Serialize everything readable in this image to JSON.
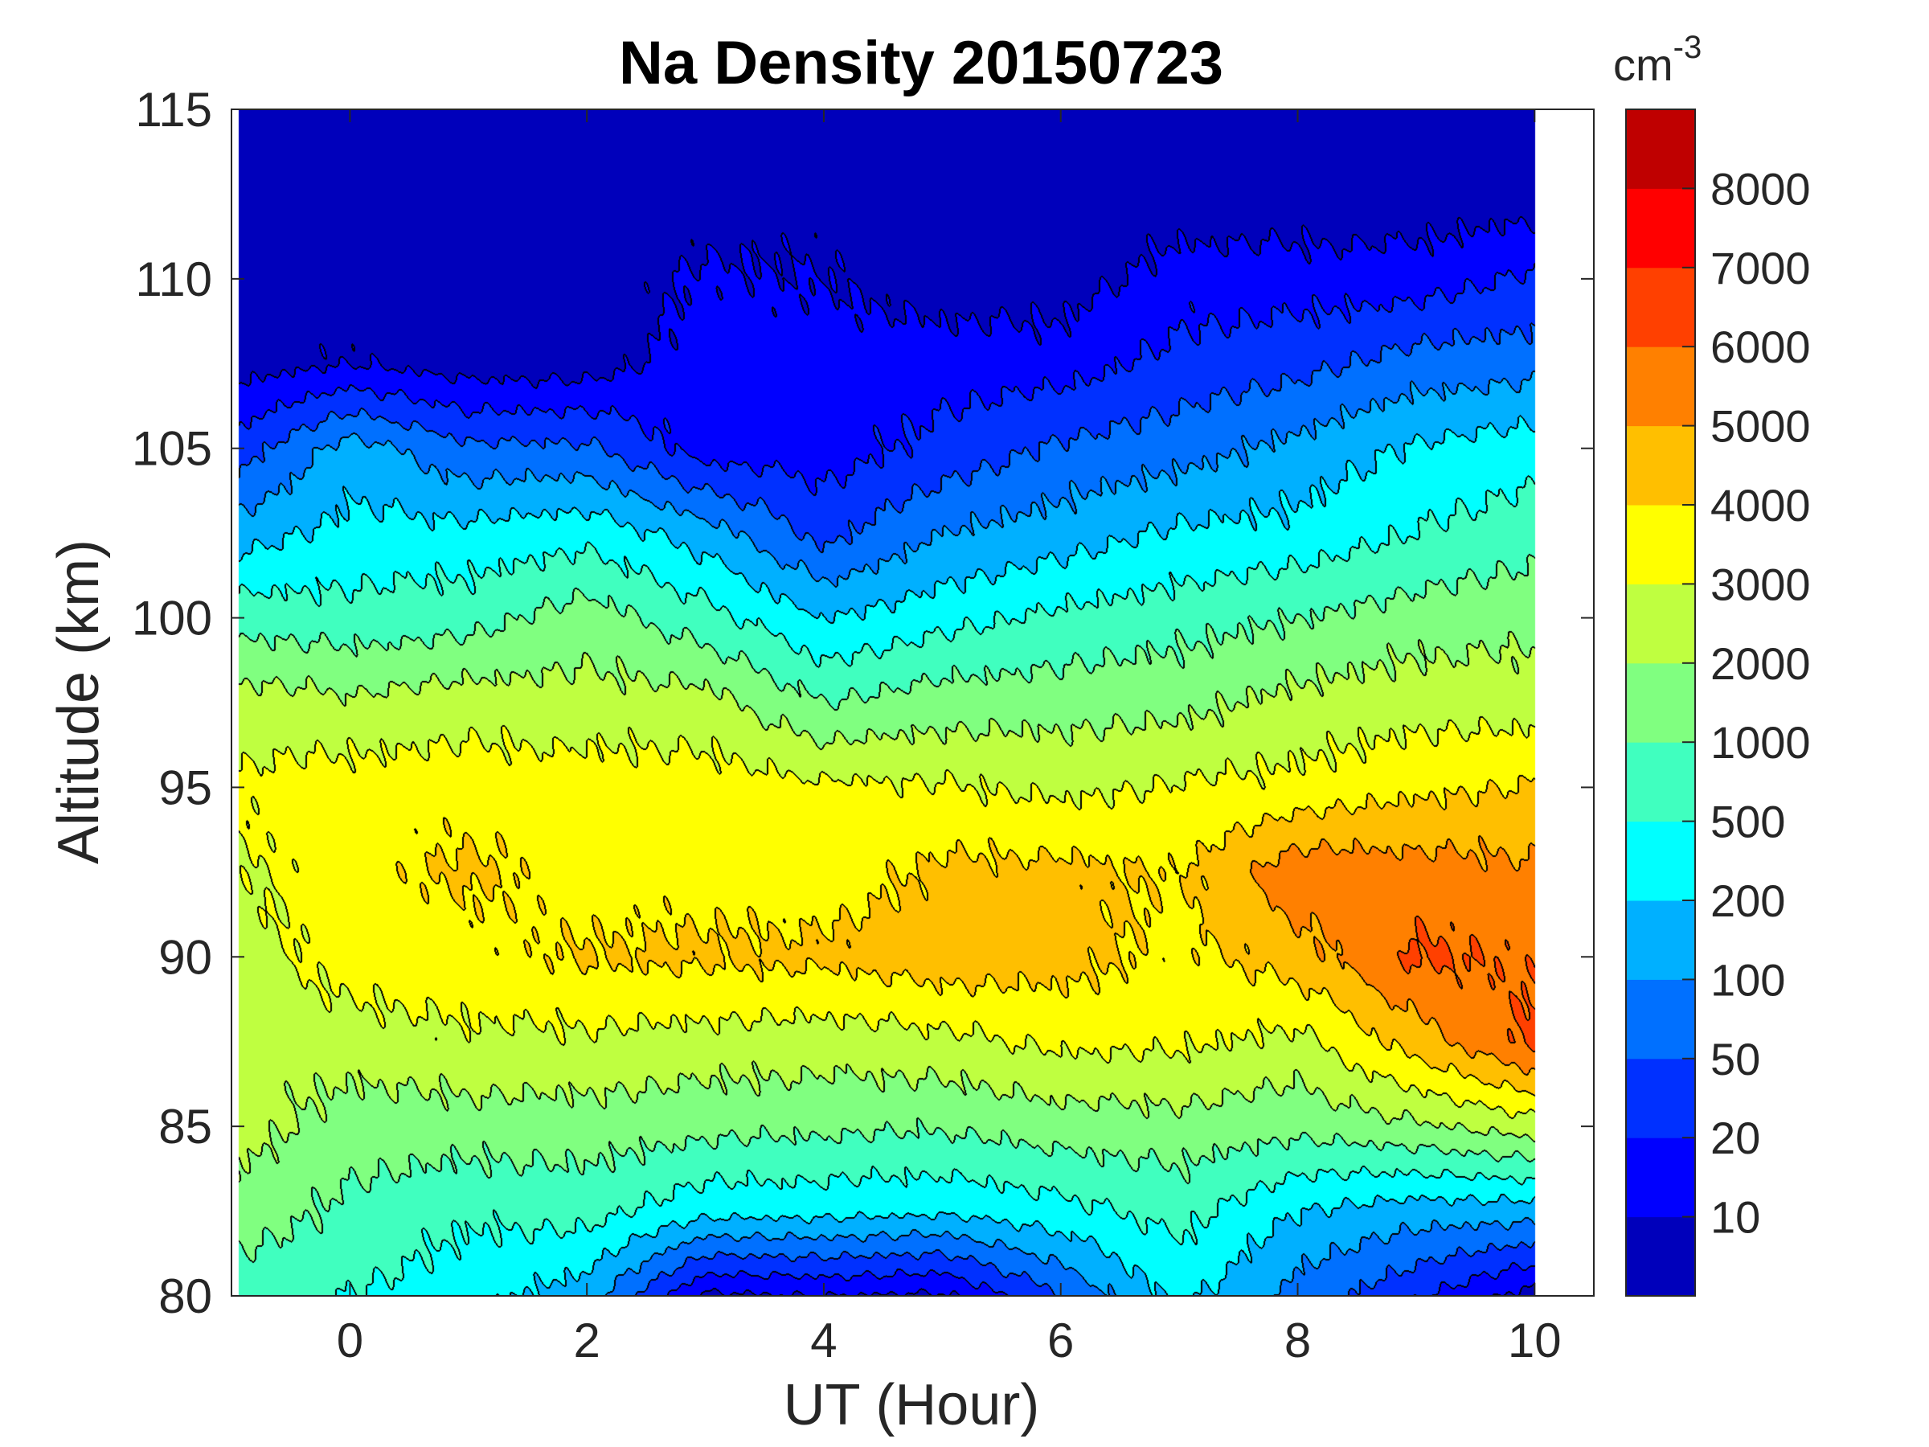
{
  "chart_data": {
    "type": "heatmap",
    "subtype": "filled-contour",
    "title": "Na Density 20150723",
    "xlabel": "UT (Hour)",
    "ylabel": "Altitude (km)",
    "xlim": [
      -1,
      10.5
    ],
    "ylim": [
      80,
      115
    ],
    "xticks": [
      0,
      2,
      4,
      6,
      8,
      10
    ],
    "yticks": [
      80,
      85,
      90,
      95,
      100,
      105,
      110,
      115
    ],
    "colorbar": {
      "unit_base": "cm",
      "unit_exp": "-3",
      "levels": [
        0,
        10,
        20,
        50,
        100,
        200,
        500,
        1000,
        2000,
        3000,
        4000,
        5000,
        6000,
        7000,
        8000,
        9000
      ],
      "tick_labels": [
        "10",
        "20",
        "50",
        "100",
        "200",
        "500",
        "1000",
        "2000",
        "3000",
        "4000",
        "5000",
        "6000",
        "7000",
        "8000"
      ],
      "colors": [
        "#0000BB",
        "#0000FF",
        "#0030FF",
        "#0070FF",
        "#00B0FF",
        "#00FFFF",
        "#40FFBF",
        "#80FF80",
        "#BFFF40",
        "#FFFF00",
        "#FFBF00",
        "#FF8000",
        "#FF4000",
        "#FF0000",
        "#BF0000"
      ]
    },
    "x": [
      -1,
      0,
      1,
      2,
      3,
      4,
      5,
      6,
      7,
      8,
      9,
      10
    ],
    "altitudes": [
      80,
      82.5,
      85,
      87.5,
      90,
      92.5,
      95,
      97.5,
      100,
      102.5,
      105,
      107.5,
      110,
      112.5,
      115
    ],
    "z": [
      [
        800,
        1500,
        2500,
        2300,
        2500,
        2800,
        3200,
        2500,
        800,
        150,
        30,
        5,
        3,
        2,
        1
      ],
      [
        500,
        900,
        1500,
        2500,
        3500,
        3600,
        3500,
        2200,
        700,
        300,
        150,
        10,
        3,
        2,
        1
      ],
      [
        300,
        600,
        1500,
        2800,
        3600,
        4200,
        3600,
        2500,
        800,
        300,
        60,
        5,
        3,
        2,
        1
      ],
      [
        150,
        700,
        1500,
        2800,
        4100,
        3500,
        3500,
        2400,
        1500,
        400,
        60,
        5,
        3,
        2,
        1
      ],
      [
        8,
        300,
        1300,
        2600,
        4200,
        3600,
        3500,
        2400,
        700,
        150,
        15,
        15,
        12,
        5,
        2
      ],
      [
        10,
        300,
        1200,
        2500,
        4200,
        3500,
        3200,
        1000,
        200,
        40,
        15,
        15,
        10,
        5,
        2
      ],
      [
        8,
        250,
        1100,
        2700,
        4600,
        4200,
        3100,
        1500,
        400,
        100,
        30,
        15,
        5,
        3,
        1
      ],
      [
        50,
        400,
        1500,
        3200,
        4400,
        4300,
        2800,
        1600,
        600,
        150,
        60,
        15,
        5,
        3,
        1
      ],
      [
        300,
        700,
        1600,
        3200,
        3700,
        3900,
        3100,
        1700,
        800,
        250,
        80,
        30,
        15,
        3,
        1
      ],
      [
        80,
        200,
        1300,
        2700,
        4500,
        5700,
        3300,
        2300,
        1000,
        300,
        130,
        40,
        15,
        3,
        1
      ],
      [
        25,
        150,
        1800,
        4500,
        6200,
        5400,
        3800,
        2600,
        1500,
        500,
        250,
        70,
        15,
        3,
        1
      ],
      [
        5,
        150,
        2500,
        6300,
        5800,
        5200,
        4100,
        2500,
        1700,
        800,
        350,
        80,
        25,
        5,
        1
      ]
    ]
  }
}
